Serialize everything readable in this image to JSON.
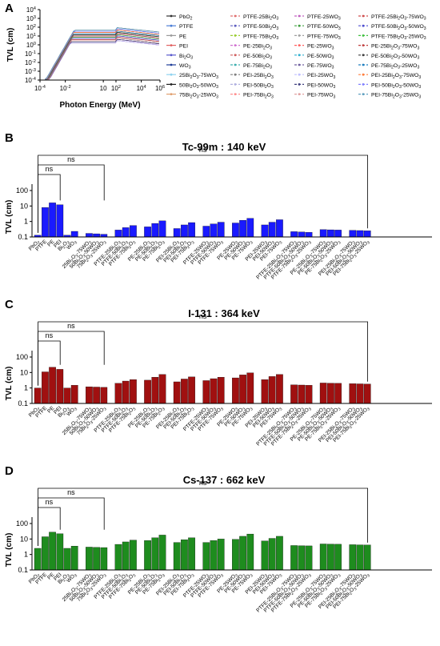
{
  "panel_letters": {
    "a": "A",
    "b": "B",
    "c": "C",
    "d": "D"
  },
  "sig_label": "ns",
  "chart_data": [
    {
      "id": "A",
      "type": "line",
      "xlabel": "Photon Energy (MeV)",
      "ylabel": "TVL (cm)",
      "xscale": "log",
      "yscale": "log",
      "xlim": [
        0.0001,
        300000
      ],
      "ylim": [
        0.0001,
        10000
      ],
      "xticks": [
        "10-4",
        "10-2",
        "10",
        "102",
        "104",
        "106"
      ],
      "yticks": [
        "10-4",
        "10-3",
        "10-2",
        "10-1",
        "100",
        "101",
        "102",
        "103",
        "104"
      ],
      "legend_position": "right",
      "legend_columns": [
        [
          "PbO2",
          "PTFE",
          "PE",
          "PEI",
          "Bi2O3",
          "WO3",
          "25Bi2O3-75WO3",
          "50Bi2O3-50WO3",
          "75Bi2O3-25WO3"
        ],
        [
          "PTFE-25Bi2O3",
          "PTFE-50Bi2O3",
          "PTFE-75Bi2O3",
          "PE-25Bi2O3",
          "PE-50Bi2O3",
          "PE-75Bi2O3",
          "PEI-25Bi2O3",
          "PEI-50Bi2O3",
          "PEI-75Bi2O3"
        ],
        [
          "PTFE-25WO3",
          "PTFE-50WO3",
          "PTFE-75WO3",
          "PE-25WO3",
          "PE-50WO3",
          "PE-75WO3",
          "PEI-25WO3",
          "PEI-50WO3",
          "PEI-75WO3"
        ],
        [
          "PTFE-25Bi2O3-75WO3",
          "PTFE-50Bi2O3-50WO3",
          "PTFE-75Bi2O3-25WO3",
          "PE-25Bi2O3-75WO3",
          "PE-50Bi2O3-50WO3",
          "PE-75Bi2O3-25WO3",
          "PEI-25Bi2O3-75WO3",
          "PEI-50Bi2O3-50WO3",
          "PEI-75Bi2O3-25WO3"
        ]
      ]
    },
    {
      "id": "B",
      "type": "bar",
      "title": "Tc-99m : 140 keV",
      "ylabel": "TVL (cm)",
      "yscale": "log",
      "ylim": [
        0.1,
        100
      ],
      "yticks": [
        "0.1",
        "1",
        "10",
        "100"
      ],
      "color": "#1a1aff",
      "values": [
        0.13,
        8,
        16,
        12,
        0.13,
        0.23,
        0.17,
        0.16,
        0.15,
        0.28,
        0.4,
        0.55,
        0.45,
        0.75,
        1.1,
        0.35,
        0.6,
        0.85,
        0.5,
        0.7,
        0.9,
        0.8,
        1.2,
        1.6,
        0.6,
        0.9,
        1.3,
        0.22,
        0.21,
        0.2,
        0.3,
        0.29,
        0.28,
        0.27,
        0.26,
        0.25
      ],
      "brackets": [
        [
          0,
          3
        ],
        [
          0,
          8
        ],
        [
          0,
          35
        ]
      ]
    },
    {
      "id": "C",
      "type": "bar",
      "title": "I-131 : 364 keV",
      "ylabel": "TVL (cm)",
      "yscale": "log",
      "ylim": [
        0.1,
        100
      ],
      "yticks": [
        "0.1",
        "1",
        "10",
        "100"
      ],
      "color": "#a01010",
      "values": [
        1,
        11,
        22,
        16,
        1,
        1.5,
        1.2,
        1.15,
        1.1,
        2,
        2.8,
        3.5,
        3.2,
        5,
        7.5,
        2.5,
        3.8,
        5.2,
        3,
        4,
        5,
        4.5,
        7,
        9.5,
        3.5,
        5.5,
        7.5,
        1.6,
        1.55,
        1.5,
        2.1,
        2.05,
        2,
        1.9,
        1.85,
        1.8
      ],
      "brackets": [
        [
          0,
          3
        ],
        [
          0,
          8
        ],
        [
          0,
          35
        ]
      ]
    },
    {
      "id": "D",
      "type": "bar",
      "title": "Cs-137 : 662 keV",
      "ylabel": "TVL (cm)",
      "yscale": "log",
      "ylim": [
        0.1,
        100
      ],
      "yticks": [
        "0.1",
        "1",
        "10",
        "100"
      ],
      "color": "#1e8c1e",
      "values": [
        2.5,
        14,
        28,
        22,
        2.5,
        3.5,
        3,
        2.9,
        2.8,
        4.5,
        6.5,
        8.5,
        8,
        12,
        18,
        6,
        9,
        12,
        6,
        8,
        10,
        9.5,
        15,
        21,
        7.5,
        11,
        15,
        3.8,
        3.7,
        3.6,
        4.8,
        4.7,
        4.6,
        4.3,
        4.2,
        4.1
      ],
      "brackets": [
        [
          0,
          3
        ],
        [
          0,
          8
        ],
        [
          0,
          35
        ]
      ]
    }
  ],
  "bar_categories": [
    "PbO2",
    "PTFE",
    "PE",
    "PEI",
    "Bi2O3",
    "WO3",
    "25Bi2O3-75WO3",
    "50Bi2O3-50WO3",
    "75Bi2O3-25WO3",
    "PTFE-25Bi2O3",
    "PTFE-50Bi2O3",
    "PTFE-75Bi2O3",
    "PE-25Bi2O3",
    "PE-50Bi2O3",
    "PE-75Bi2O3",
    "PEI-25Bi2O3",
    "PEI-50Bi2O3",
    "PEI-75Bi2O3",
    "PTFE-25WO3",
    "PTFE-50WO3",
    "PTFE-75WO3",
    "PE-25WO3",
    "PE-50WO3",
    "PE-75WO3",
    "PEI-25WO3",
    "PEI-50WO3",
    "PEI-75WO3",
    "PTFE-25Bi2O3-75WO3",
    "PTFE-50Bi2O3-50WO3",
    "PTFE-75Bi2O3-25WO3",
    "PE-25Bi2O3-75WO3",
    "PE-50Bi2O3-50WO3",
    "PE-75Bi2O3-25WO3",
    "PEI-25Bi2O3-75WO3",
    "PEI-50Bi2O3-50WO3",
    "PEI-75Bi2O3-25WO3"
  ],
  "bar_groups": [
    [
      0,
      1,
      2,
      3,
      4,
      5
    ],
    [
      6,
      7,
      8
    ],
    [
      9,
      10,
      11
    ],
    [
      12,
      13,
      14
    ],
    [
      15,
      16,
      17
    ],
    [
      18,
      19,
      20
    ],
    [
      21,
      22,
      23
    ],
    [
      24,
      25,
      26
    ],
    [
      27,
      28,
      29
    ],
    [
      30,
      31,
      32
    ],
    [
      33,
      34,
      35
    ]
  ],
  "line_colors": [
    "#333333",
    "#4d7fd6",
    "#9a9a9a",
    "#e06060",
    "#5a5acd",
    "#1f3d99",
    "#8fd3f0",
    "#202020",
    "#e0a070",
    "#e07070",
    "#6060c0",
    "#9acd32",
    "#d070d0",
    "#d06060",
    "#40b0b0",
    "#808080",
    "#b0b0e0",
    "#ff9090",
    "#c060c0",
    "#40a040",
    "#a0a0a0",
    "#ff6060",
    "#30b0d0",
    "#7060a0",
    "#c0c0ff",
    "#404080",
    "#e0a0a0",
    "#d05050",
    "#5050d0",
    "#40c040",
    "#c04040",
    "#404040",
    "#2080c0",
    "#ff8040",
    "#8080ff",
    "#60a0c0"
  ]
}
